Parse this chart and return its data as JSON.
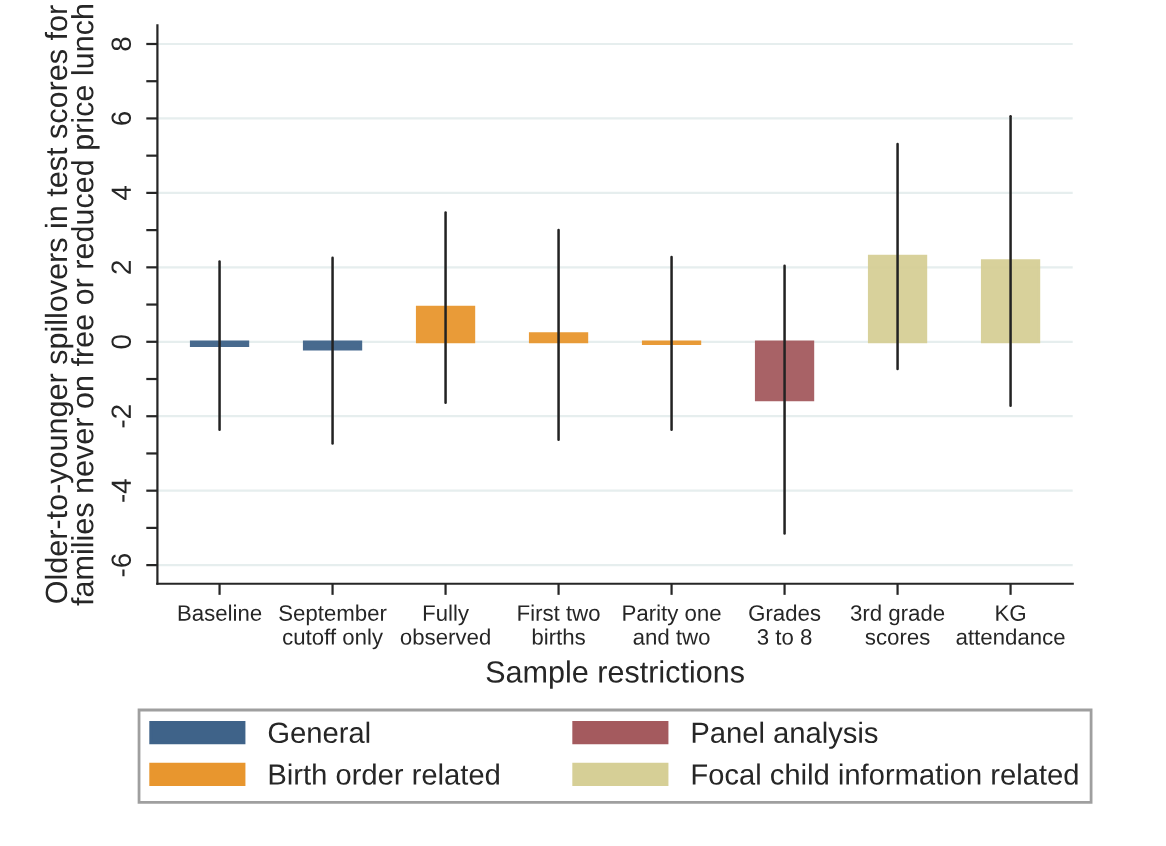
{
  "chart_data": {
    "type": "bar",
    "categories": [
      "Baseline",
      "September\ncutoff only",
      "Fully\nobserved",
      "First two\nbirths",
      "Parity one\nand two",
      "Grades\n3 to 8",
      "3rd grade\nscores",
      "KG\nattendance"
    ],
    "series": [
      {
        "name": "General",
        "color": "#3f6389",
        "values": [
          -0.1,
          -0.2,
          null,
          null,
          null,
          null,
          null,
          null
        ],
        "errors": [
          [
            -2.36,
            2.16
          ],
          [
            -2.73,
            2.26
          ],
          null,
          null,
          null,
          null,
          null,
          null
        ]
      },
      {
        "name": "Birth order related",
        "color": "#e8962e",
        "values": [
          null,
          null,
          0.93,
          0.22,
          -0.05,
          null,
          null,
          null
        ],
        "errors": [
          null,
          null,
          [
            -1.64,
            3.47
          ],
          [
            -2.63,
            3.0
          ],
          [
            -2.36,
            2.28
          ],
          null,
          null,
          null
        ]
      },
      {
        "name": "Panel analysis",
        "color": "#a45a5e",
        "values": [
          null,
          null,
          null,
          null,
          null,
          -1.56,
          null,
          null
        ],
        "errors": [
          null,
          null,
          null,
          null,
          null,
          [
            -5.15,
            2.04
          ],
          null,
          null
        ]
      },
      {
        "name": "Focal child information related",
        "color": "#d6cf96",
        "values": [
          null,
          null,
          null,
          null,
          null,
          null,
          2.3,
          2.18
        ],
        "errors": [
          null,
          null,
          null,
          null,
          null,
          null,
          [
            -0.73,
            5.31
          ],
          [
            -1.72,
            6.06
          ]
        ]
      }
    ],
    "xlabel": "Sample restrictions",
    "ylabel": "Older-to-younger spillovers in test scores for\nfamilies never on free or reduced price lunch",
    "ylim": [
      -6.5,
      8.5
    ],
    "yticks": [
      -6,
      {
        "value": -5,
        "label": null
      },
      -4,
      {
        "value": -3,
        "label": null
      },
      -2,
      {
        "value": -1,
        "label": null
      },
      0,
      {
        "value": 1,
        "label": null
      },
      2,
      {
        "value": 3,
        "label": null
      },
      4,
      {
        "value": 5,
        "label": null
      },
      6,
      {
        "value": 7,
        "label": null
      },
      8
    ],
    "grid": "y",
    "legend": "bottom"
  }
}
